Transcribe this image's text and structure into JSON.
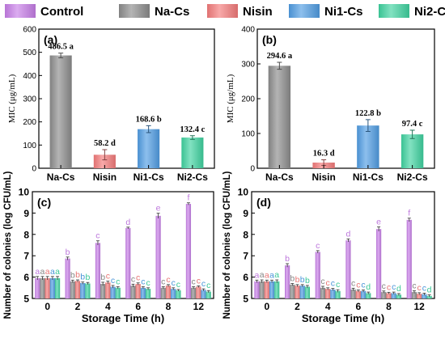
{
  "legend": {
    "items": [
      {
        "label": "Control",
        "color": "#c77ee8"
      },
      {
        "label": "Na-Cs",
        "color": "#8c8c8c"
      },
      {
        "label": "Nisin",
        "color": "#f47b7b"
      },
      {
        "label": "Ni1-Cs",
        "color": "#4f9de3"
      },
      {
        "label": "Ni2-Cs",
        "color": "#3fd3a0"
      }
    ]
  },
  "chart_data": [
    {
      "panel": "(a)",
      "type": "bar",
      "ylabel": "MIC (μg/mL)",
      "ylim": [
        0,
        600
      ],
      "yticks": [
        0,
        100,
        200,
        300,
        400,
        500,
        600
      ],
      "categories": [
        "Na-Cs",
        "Nisin",
        "Ni1-Cs",
        "Ni2-Cs"
      ],
      "values": [
        486.5,
        58.2,
        168.6,
        132.4
      ],
      "errors": [
        10,
        22,
        15,
        8
      ],
      "bar_labels": [
        "486.5 a",
        "58.2 d",
        "168.6 b",
        "132.4 c"
      ]
    },
    {
      "panel": "(b)",
      "type": "bar",
      "ylabel": "MIC (μg/mL)",
      "ylim": [
        0,
        400
      ],
      "yticks": [
        0,
        100,
        200,
        300,
        400
      ],
      "categories": [
        "Na-Cs",
        "Nisin",
        "Ni1-Cs",
        "Ni2-Cs"
      ],
      "values": [
        294.6,
        16.3,
        122.8,
        97.4
      ],
      "errors": [
        10,
        8,
        17,
        12
      ],
      "bar_labels": [
        "294.6 a",
        "16.3 d",
        "122.8 b",
        "97.4 c"
      ]
    },
    {
      "panel": "(c)",
      "type": "bar",
      "xlabel": "Storage Time (h)",
      "ylabel": "Number of colonies (log CFU/mL)",
      "ylim": [
        5,
        10
      ],
      "yticks": [
        5,
        6,
        7,
        8,
        9,
        10
      ],
      "categories": [
        "0",
        "2",
        "4",
        "6",
        "8",
        "12"
      ],
      "series": [
        {
          "name": "Control",
          "values": [
            5.95,
            6.87,
            7.6,
            8.3,
            8.87,
            9.43
          ],
          "errors": [
            0.08,
            0.07,
            0.1,
            0.04,
            0.12,
            0.05
          ],
          "letters": [
            "a",
            "b",
            "c",
            "d",
            "e",
            "f"
          ]
        },
        {
          "name": "Na-Cs",
          "values": [
            5.95,
            5.8,
            5.68,
            5.6,
            5.5,
            5.5
          ],
          "errors": [
            0.08,
            0.06,
            0.08,
            0.07,
            0.05,
            0.05
          ],
          "letters": [
            "a",
            "b",
            "b",
            "c",
            "c",
            "c"
          ]
        },
        {
          "name": "Nisin",
          "values": [
            5.95,
            5.82,
            5.75,
            5.68,
            5.6,
            5.55
          ],
          "errors": [
            0.08,
            0.05,
            0.06,
            0.05,
            0.05,
            0.04
          ],
          "letters": [
            "a",
            "b",
            "c",
            "c",
            "c",
            "c"
          ]
        },
        {
          "name": "Ni1-Cs",
          "values": [
            5.95,
            5.72,
            5.55,
            5.5,
            5.45,
            5.4
          ],
          "errors": [
            0.08,
            0.05,
            0.06,
            0.05,
            0.05,
            0.05
          ],
          "letters": [
            "a",
            "b",
            "c",
            "c",
            "c",
            "c"
          ]
        },
        {
          "name": "Ni2-Cs",
          "values": [
            5.95,
            5.7,
            5.5,
            5.45,
            5.38,
            5.32
          ],
          "errors": [
            0.08,
            0.05,
            0.05,
            0.05,
            0.04,
            0.05
          ],
          "letters": [
            "a",
            "b",
            "c",
            "c",
            "c",
            "c"
          ]
        }
      ]
    },
    {
      "panel": "(d)",
      "type": "bar",
      "xlabel": "Storage Time (h)",
      "ylabel": "Number of colonies (log CFU/mL)",
      "ylim": [
        5,
        10
      ],
      "yticks": [
        5,
        6,
        7,
        8,
        9,
        10
      ],
      "categories": [
        "0",
        "2",
        "4",
        "6",
        "8",
        "12"
      ],
      "series": [
        {
          "name": "Control",
          "values": [
            5.8,
            6.55,
            7.18,
            7.72,
            8.25,
            8.68
          ],
          "errors": [
            0.06,
            0.08,
            0.06,
            0.07,
            0.1,
            0.08
          ],
          "letters": [
            "a",
            "b",
            "c",
            "d",
            "e",
            "f"
          ]
        },
        {
          "name": "Na-Cs",
          "values": [
            5.8,
            5.65,
            5.5,
            5.42,
            5.3,
            5.3
          ],
          "errors": [
            0.07,
            0.05,
            0.07,
            0.06,
            0.05,
            0.06
          ],
          "letters": [
            "a",
            "b",
            "c",
            "c",
            "c",
            "c"
          ]
        },
        {
          "name": "Nisin",
          "values": [
            5.8,
            5.6,
            5.45,
            5.35,
            5.25,
            5.22
          ],
          "errors": [
            0.06,
            0.05,
            0.05,
            0.05,
            0.04,
            0.05
          ],
          "letters": [
            "a",
            "b",
            "c",
            "c",
            "c",
            "c"
          ]
        },
        {
          "name": "Ni1-Cs",
          "values": [
            5.8,
            5.6,
            5.42,
            5.35,
            5.25,
            5.2
          ],
          "errors": [
            0.06,
            0.05,
            0.05,
            0.05,
            0.05,
            0.05
          ],
          "letters": [
            "a",
            "b",
            "c",
            "c",
            "c",
            "c"
          ]
        },
        {
          "name": "Ni2-Cs",
          "values": [
            5.8,
            5.55,
            5.35,
            5.25,
            5.18,
            5.12
          ],
          "errors": [
            0.07,
            0.06,
            0.06,
            0.05,
            0.05,
            0.05
          ],
          "letters": [
            "a",
            "b",
            "c",
            "d",
            "d",
            "d"
          ]
        }
      ]
    }
  ]
}
